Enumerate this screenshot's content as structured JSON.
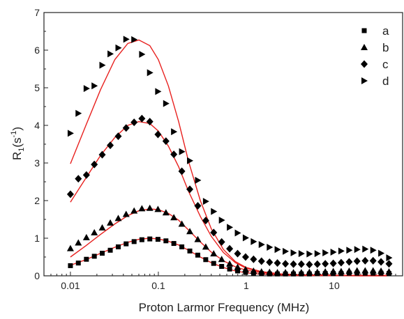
{
  "chart_data": {
    "type": "scatter",
    "xlabel": "Proton Larmor Frequency (MHz)",
    "ylabel_base": "R",
    "ylabel_sub": "1",
    "ylabel_open": "(s",
    "ylabel_sup": "-1",
    "ylabel_close": ")",
    "xscale": "log",
    "xlim": [
      0.005,
      60
    ],
    "ylim": [
      0,
      7
    ],
    "x_ticks": [
      {
        "value": 0.01,
        "label": "0.01"
      },
      {
        "value": 0.1,
        "label": "0.1"
      },
      {
        "value": 1,
        "label": "1"
      },
      {
        "value": 10,
        "label": "10"
      }
    ],
    "y_ticks": [
      {
        "value": 0,
        "label": "0"
      },
      {
        "value": 1,
        "label": "1"
      },
      {
        "value": 2,
        "label": "2"
      },
      {
        "value": 3,
        "label": "3"
      },
      {
        "value": 4,
        "label": "4"
      },
      {
        "value": 5,
        "label": "5"
      },
      {
        "value": 6,
        "label": "6"
      },
      {
        "value": 7,
        "label": "7"
      }
    ],
    "legend_position": "top-right",
    "marker_color": "#000000",
    "fit_color": "#e8201e",
    "series": [
      {
        "name": "a",
        "marker": "square",
        "points": [
          [
            0.01,
            0.27
          ],
          [
            0.0123,
            0.34
          ],
          [
            0.0152,
            0.44
          ],
          [
            0.0187,
            0.52
          ],
          [
            0.023,
            0.6
          ],
          [
            0.0284,
            0.68
          ],
          [
            0.035,
            0.77
          ],
          [
            0.043,
            0.85
          ],
          [
            0.053,
            0.91
          ],
          [
            0.065,
            0.96
          ],
          [
            0.08,
            0.98
          ],
          [
            0.099,
            0.97
          ],
          [
            0.122,
            0.93
          ],
          [
            0.15,
            0.86
          ],
          [
            0.185,
            0.77
          ],
          [
            0.228,
            0.66
          ],
          [
            0.281,
            0.55
          ],
          [
            0.346,
            0.43
          ],
          [
            0.426,
            0.33
          ],
          [
            0.525,
            0.25
          ],
          [
            0.647,
            0.18
          ],
          [
            0.797,
            0.13
          ],
          [
            0.982,
            0.09
          ],
          [
            1.21,
            0.07
          ],
          [
            1.49,
            0.06
          ],
          [
            1.84,
            0.05
          ],
          [
            2.26,
            0.05
          ],
          [
            2.79,
            0.05
          ],
          [
            3.44,
            0.05
          ],
          [
            4.23,
            0.05
          ],
          [
            5.22,
            0.05
          ],
          [
            6.43,
            0.06
          ],
          [
            7.92,
            0.06
          ],
          [
            9.76,
            0.06
          ],
          [
            12.0,
            0.06
          ],
          [
            14.8,
            0.07
          ],
          [
            18.2,
            0.07
          ],
          [
            22.5,
            0.07
          ],
          [
            27.7,
            0.07
          ],
          [
            34.1,
            0.07
          ],
          [
            42.0,
            0.06
          ]
        ],
        "fit": [
          [
            0.01,
            0.28
          ],
          [
            0.015,
            0.43
          ],
          [
            0.022,
            0.6
          ],
          [
            0.032,
            0.76
          ],
          [
            0.045,
            0.89
          ],
          [
            0.06,
            0.97
          ],
          [
            0.08,
            1.0
          ],
          [
            0.1,
            0.98
          ],
          [
            0.13,
            0.92
          ],
          [
            0.17,
            0.82
          ],
          [
            0.22,
            0.68
          ],
          [
            0.3,
            0.5
          ],
          [
            0.4,
            0.35
          ],
          [
            0.55,
            0.22
          ],
          [
            0.75,
            0.13
          ],
          [
            1.0,
            0.08
          ],
          [
            1.5,
            0.04
          ],
          [
            2.5,
            0.02
          ],
          [
            4,
            0.01
          ],
          [
            8,
            0.01
          ],
          [
            20,
            0.0
          ],
          [
            40,
            0.0
          ]
        ]
      },
      {
        "name": "b",
        "marker": "triangle-up",
        "points": [
          [
            0.01,
            0.73
          ],
          [
            0.0123,
            0.88
          ],
          [
            0.0152,
            1.02
          ],
          [
            0.0187,
            1.15
          ],
          [
            0.023,
            1.28
          ],
          [
            0.0284,
            1.41
          ],
          [
            0.035,
            1.53
          ],
          [
            0.043,
            1.64
          ],
          [
            0.053,
            1.73
          ],
          [
            0.065,
            1.79
          ],
          [
            0.08,
            1.8
          ],
          [
            0.099,
            1.77
          ],
          [
            0.122,
            1.68
          ],
          [
            0.15,
            1.55
          ],
          [
            0.185,
            1.38
          ],
          [
            0.228,
            1.18
          ],
          [
            0.281,
            0.97
          ],
          [
            0.346,
            0.77
          ],
          [
            0.426,
            0.59
          ],
          [
            0.525,
            0.44
          ],
          [
            0.647,
            0.32
          ],
          [
            0.797,
            0.23
          ],
          [
            0.982,
            0.17
          ],
          [
            1.21,
            0.13
          ],
          [
            1.49,
            0.11
          ],
          [
            1.84,
            0.1
          ],
          [
            2.26,
            0.09
          ],
          [
            2.79,
            0.09
          ],
          [
            3.44,
            0.09
          ],
          [
            4.23,
            0.09
          ],
          [
            5.22,
            0.1
          ],
          [
            6.43,
            0.1
          ],
          [
            7.92,
            0.11
          ],
          [
            9.76,
            0.12
          ],
          [
            12.0,
            0.12
          ],
          [
            14.8,
            0.13
          ],
          [
            18.2,
            0.14
          ],
          [
            22.5,
            0.14
          ],
          [
            27.7,
            0.14
          ],
          [
            34.1,
            0.13
          ],
          [
            42.0,
            0.11
          ]
        ],
        "fit": [
          [
            0.01,
            0.5
          ],
          [
            0.015,
            0.8
          ],
          [
            0.022,
            1.1
          ],
          [
            0.032,
            1.38
          ],
          [
            0.045,
            1.6
          ],
          [
            0.06,
            1.73
          ],
          [
            0.08,
            1.78
          ],
          [
            0.1,
            1.76
          ],
          [
            0.13,
            1.66
          ],
          [
            0.17,
            1.48
          ],
          [
            0.22,
            1.22
          ],
          [
            0.3,
            0.9
          ],
          [
            0.4,
            0.63
          ],
          [
            0.55,
            0.4
          ],
          [
            0.75,
            0.24
          ],
          [
            1.0,
            0.15
          ],
          [
            1.5,
            0.08
          ],
          [
            2.5,
            0.04
          ],
          [
            4,
            0.02
          ],
          [
            8,
            0.01
          ],
          [
            20,
            0.01
          ],
          [
            40,
            0.01
          ]
        ]
      },
      {
        "name": "c",
        "marker": "diamond",
        "points": [
          [
            0.01,
            2.17
          ],
          [
            0.0123,
            2.58
          ],
          [
            0.0152,
            2.68
          ],
          [
            0.0187,
            2.96
          ],
          [
            0.023,
            3.22
          ],
          [
            0.0284,
            3.47
          ],
          [
            0.035,
            3.71
          ],
          [
            0.043,
            3.93
          ],
          [
            0.053,
            4.08
          ],
          [
            0.065,
            4.18
          ],
          [
            0.08,
            4.1
          ],
          [
            0.099,
            3.76
          ],
          [
            0.122,
            3.58
          ],
          [
            0.15,
            3.23
          ],
          [
            0.185,
            2.78
          ],
          [
            0.228,
            2.3
          ],
          [
            0.281,
            1.86
          ],
          [
            0.346,
            1.47
          ],
          [
            0.426,
            1.15
          ],
          [
            0.525,
            0.9
          ],
          [
            0.647,
            0.72
          ],
          [
            0.797,
            0.59
          ],
          [
            0.982,
            0.5
          ],
          [
            1.21,
            0.44
          ],
          [
            1.49,
            0.39
          ],
          [
            1.84,
            0.36
          ],
          [
            2.26,
            0.34
          ],
          [
            2.79,
            0.32
          ],
          [
            3.44,
            0.31
          ],
          [
            4.23,
            0.31
          ],
          [
            5.22,
            0.3
          ],
          [
            6.43,
            0.31
          ],
          [
            7.92,
            0.32
          ],
          [
            9.76,
            0.33
          ],
          [
            12.0,
            0.35
          ],
          [
            14.8,
            0.37
          ],
          [
            18.2,
            0.39
          ],
          [
            22.5,
            0.4
          ],
          [
            27.7,
            0.4
          ],
          [
            34.1,
            0.37
          ],
          [
            42.0,
            0.32
          ]
        ],
        "fit": [
          [
            0.01,
            1.96
          ],
          [
            0.015,
            2.6
          ],
          [
            0.022,
            3.2
          ],
          [
            0.032,
            3.68
          ],
          [
            0.045,
            4.0
          ],
          [
            0.06,
            4.1
          ],
          [
            0.08,
            4.05
          ],
          [
            0.1,
            3.85
          ],
          [
            0.13,
            3.45
          ],
          [
            0.17,
            2.9
          ],
          [
            0.22,
            2.25
          ],
          [
            0.3,
            1.58
          ],
          [
            0.4,
            1.05
          ],
          [
            0.55,
            0.62
          ],
          [
            0.75,
            0.35
          ],
          [
            1.0,
            0.2
          ],
          [
            1.5,
            0.1
          ],
          [
            2.5,
            0.05
          ],
          [
            4,
            0.03
          ],
          [
            8,
            0.02
          ],
          [
            20,
            0.01
          ],
          [
            40,
            0.01
          ]
        ]
      },
      {
        "name": "d",
        "marker": "triangle-right",
        "points": [
          [
            0.01,
            3.79
          ],
          [
            0.0123,
            4.32
          ],
          [
            0.0152,
            4.98
          ],
          [
            0.0187,
            5.05
          ],
          [
            0.023,
            5.6
          ],
          [
            0.0284,
            5.9
          ],
          [
            0.035,
            6.06
          ],
          [
            0.043,
            6.29
          ],
          [
            0.053,
            6.28
          ],
          [
            0.065,
            5.89
          ],
          [
            0.08,
            5.4
          ],
          [
            0.099,
            4.9
          ],
          [
            0.122,
            4.58
          ],
          [
            0.15,
            3.83
          ],
          [
            0.185,
            3.3
          ],
          [
            0.228,
            3.06
          ],
          [
            0.281,
            2.54
          ],
          [
            0.346,
            1.98
          ],
          [
            0.426,
            1.71
          ],
          [
            0.525,
            1.48
          ],
          [
            0.647,
            1.29
          ],
          [
            0.797,
            1.14
          ],
          [
            0.982,
            1.01
          ],
          [
            1.21,
            0.91
          ],
          [
            1.49,
            0.83
          ],
          [
            1.84,
            0.76
          ],
          [
            2.26,
            0.7
          ],
          [
            2.79,
            0.65
          ],
          [
            3.44,
            0.61
          ],
          [
            4.23,
            0.59
          ],
          [
            5.22,
            0.58
          ],
          [
            6.43,
            0.59
          ],
          [
            7.92,
            0.61
          ],
          [
            9.76,
            0.63
          ],
          [
            12.0,
            0.66
          ],
          [
            14.8,
            0.68
          ],
          [
            18.2,
            0.7
          ],
          [
            22.5,
            0.71
          ],
          [
            27.7,
            0.68
          ],
          [
            34.1,
            0.6
          ],
          [
            42.0,
            0.48
          ]
        ],
        "fit": [
          [
            0.01,
            2.98
          ],
          [
            0.015,
            4.0
          ],
          [
            0.022,
            4.95
          ],
          [
            0.032,
            5.75
          ],
          [
            0.045,
            6.18
          ],
          [
            0.06,
            6.27
          ],
          [
            0.08,
            6.12
          ],
          [
            0.1,
            5.75
          ],
          [
            0.13,
            5.05
          ],
          [
            0.17,
            4.1
          ],
          [
            0.22,
            3.05
          ],
          [
            0.3,
            2.0
          ],
          [
            0.4,
            1.25
          ],
          [
            0.55,
            0.7
          ],
          [
            0.75,
            0.38
          ],
          [
            1.0,
            0.22
          ],
          [
            1.5,
            0.11
          ],
          [
            2.5,
            0.05
          ],
          [
            4,
            0.03
          ],
          [
            8,
            0.02
          ],
          [
            20,
            0.01
          ],
          [
            40,
            0.01
          ]
        ]
      }
    ]
  }
}
